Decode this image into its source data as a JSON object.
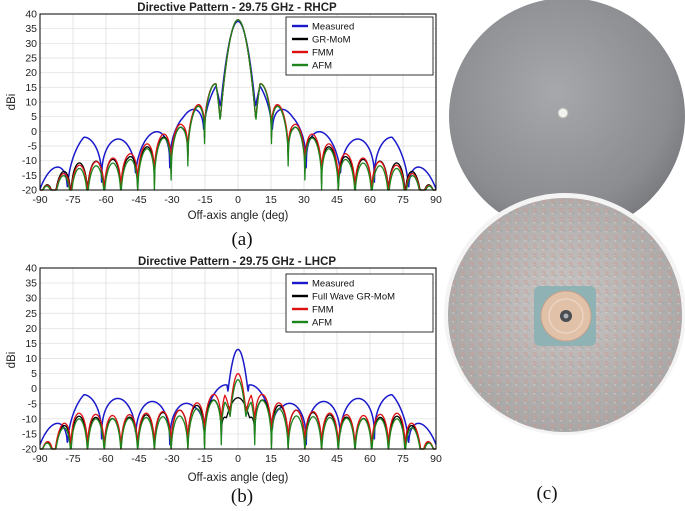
{
  "chart_data": [
    {
      "type": "line",
      "panel_label": "(a)",
      "title": "Directive Pattern - 29.75 GHz - RHCP",
      "xlabel": "Off-axis angle (deg)",
      "ylabel": "dBi",
      "xlim": [
        -90,
        90
      ],
      "ylim": [
        -20,
        40
      ],
      "xticks": [
        -90,
        -75,
        -60,
        -45,
        -30,
        -15,
        0,
        15,
        30,
        45,
        60,
        75,
        90
      ],
      "yticks": [
        -20,
        -15,
        -10,
        -5,
        0,
        5,
        10,
        15,
        20,
        25,
        30,
        35,
        40
      ],
      "grid": true,
      "legend_position": "top-right",
      "series": [
        {
          "name": "Measured",
          "color": "#1a1acc",
          "params": {
            "peak": 37.5,
            "w": 3.6,
            "lobes": [
              [
                0,
                -20
              ],
              [
                10,
                16
              ],
              [
                25,
                5
              ],
              [
                45,
                -3
              ],
              [
                70,
                -2
              ],
              [
                90,
                -17
              ]
            ],
            "period": 15.5,
            "depth": 15
          }
        },
        {
          "name": "GR-MoM",
          "color": "#000000",
          "params": {
            "peak": 38,
            "w": 3.4,
            "lobes": [
              [
                0,
                -20
              ],
              [
                10,
                17
              ],
              [
                25,
                2
              ],
              [
                50,
                -9
              ],
              [
                75,
                -11
              ],
              [
                90,
                -20
              ]
            ],
            "period": 7.6,
            "depth": 14
          }
        },
        {
          "name": "FMM",
          "color": "#dd1111",
          "params": {
            "peak": 38,
            "w": 3.4,
            "lobes": [
              [
                0,
                -20
              ],
              [
                10,
                17
              ],
              [
                25,
                3
              ],
              [
                50,
                -8
              ],
              [
                75,
                -12
              ],
              [
                90,
                -20
              ]
            ],
            "period": 7.6,
            "depth": 14
          }
        },
        {
          "name": "AFM",
          "color": "#1c861c",
          "params": {
            "peak": 38,
            "w": 3.4,
            "lobes": [
              [
                0,
                -20
              ],
              [
                10,
                17
              ],
              [
                25,
                2
              ],
              [
                50,
                -10
              ],
              [
                75,
                -13
              ],
              [
                90,
                -20
              ]
            ],
            "period": 7.6,
            "depth": 16
          }
        }
      ]
    },
    {
      "type": "line",
      "panel_label": "(b)",
      "title": "Directive Pattern - 29.75 GHz - LHCP",
      "xlabel": "Off-axis angle (deg)",
      "ylabel": "dBi",
      "xlim": [
        -90,
        90
      ],
      "ylim": [
        -20,
        40
      ],
      "xticks": [
        -90,
        -75,
        -60,
        -45,
        -30,
        -15,
        0,
        15,
        30,
        45,
        60,
        75,
        90
      ],
      "yticks": [
        -20,
        -15,
        -10,
        -5,
        0,
        5,
        10,
        15,
        20,
        25,
        30,
        35,
        40
      ],
      "grid": true,
      "legend_position": "top-right",
      "series": [
        {
          "name": "Measured",
          "color": "#1a1acc",
          "params": {
            "peak": 13,
            "w": 3,
            "lobes": [
              [
                0,
                -20
              ],
              [
                5,
                2
              ],
              [
                20,
                -5
              ],
              [
                45,
                -4
              ],
              [
                70,
                -2
              ],
              [
                90,
                -16
              ]
            ],
            "period": 15.5,
            "depth": 14
          }
        },
        {
          "name": "Full Wave GR-MoM",
          "color": "#000000",
          "params": {
            "peak": -3,
            "w": 5,
            "lobes": [
              [
                0,
                -20
              ],
              [
                8,
                -3
              ],
              [
                25,
                -7
              ],
              [
                55,
                -10
              ],
              [
                75,
                -9
              ],
              [
                90,
                -20
              ]
            ],
            "period": 7.6,
            "depth": 14
          }
        },
        {
          "name": "FMM",
          "color": "#dd1111",
          "params": {
            "peak": 5,
            "w": 2.5,
            "lobes": [
              [
                0,
                -20
              ],
              [
                6,
                0
              ],
              [
                25,
                -7
              ],
              [
                55,
                -9
              ],
              [
                75,
                -8
              ],
              [
                90,
                -20
              ]
            ],
            "period": 7.6,
            "depth": 14
          }
        },
        {
          "name": "AFM",
          "color": "#1c861c",
          "params": {
            "peak": 3,
            "w": 2.5,
            "lobes": [
              [
                0,
                -20
              ],
              [
                6,
                -2
              ],
              [
                25,
                -9
              ],
              [
                55,
                -10
              ],
              [
                75,
                -10
              ],
              [
                90,
                -20
              ]
            ],
            "period": 7.6,
            "depth": 16
          }
        }
      ]
    }
  ],
  "photo": {
    "panel_label": "(c)"
  }
}
